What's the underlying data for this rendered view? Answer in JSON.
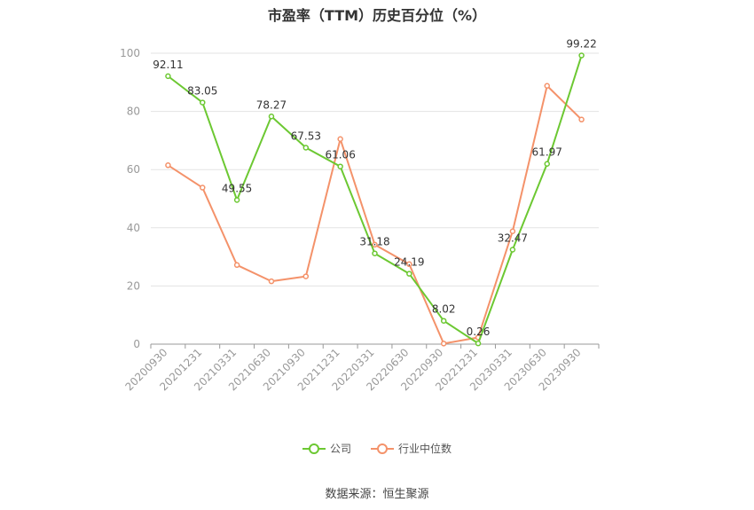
{
  "chart_data": {
    "type": "line",
    "title": "市盈率（TTM）历史百分位（%）",
    "categories": [
      "20200930",
      "20201231",
      "20210331",
      "20210630",
      "20210930",
      "20211231",
      "20220331",
      "20220630",
      "20220930",
      "20221231",
      "20230331",
      "20230630",
      "20230930"
    ],
    "series": [
      {
        "name": "公司",
        "color": "#6cc832",
        "values": [
          92.11,
          83.05,
          49.55,
          78.27,
          67.53,
          61.06,
          31.18,
          24.19,
          8.02,
          0.26,
          32.47,
          61.97,
          99.22
        ],
        "labels": [
          "92.11",
          "83.05",
          "49.55",
          "78.27",
          "67.53",
          "61.06",
          "31.18",
          "24.19",
          "8.02",
          "0.26",
          "32.47",
          "61.97",
          "99.22"
        ]
      },
      {
        "name": "行业中位数",
        "color": "#f4926a",
        "values": [
          61.5,
          53.8,
          27.2,
          21.6,
          23.3,
          70.5,
          34.2,
          27.5,
          0.2,
          2.3,
          38.8,
          88.8,
          77.2
        ]
      }
    ],
    "ylim": [
      0,
      100
    ],
    "yticks": [
      0,
      20,
      40,
      60,
      80,
      100
    ],
    "grid": true,
    "legend_position": "bottom",
    "source": "数据来源：恒生聚源"
  }
}
